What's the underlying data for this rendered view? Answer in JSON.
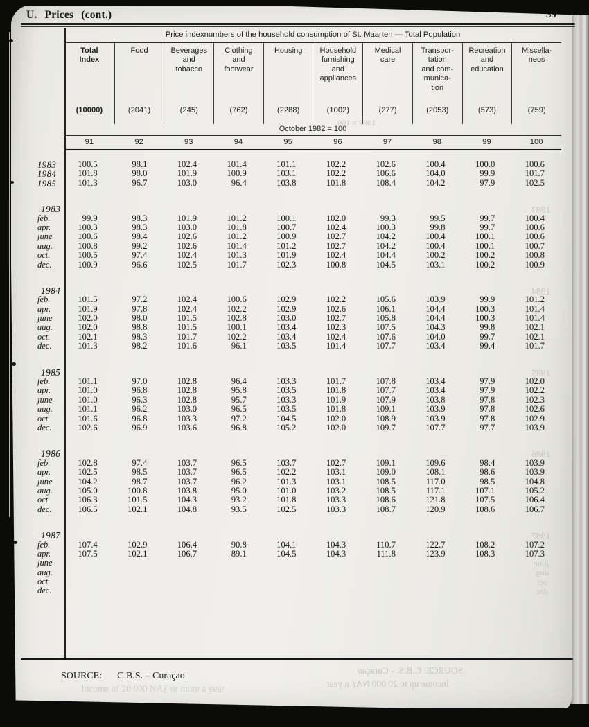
{
  "page": {
    "section_header": "U. Prices (cont.)",
    "page_number": "39"
  },
  "table": {
    "title": "Price indexnumbers of the household consumption of St. Maarten — Total Population",
    "base_period": "October 1982 = 100",
    "columns": [
      {
        "title": "Total\nIndex",
        "weight": "(10000)",
        "number": "91",
        "bold": true
      },
      {
        "title": "Food",
        "weight": "(2041)",
        "number": "92",
        "bold": false
      },
      {
        "title": "Beverages\nand\ntobacco",
        "weight": "(245)",
        "number": "93",
        "bold": false
      },
      {
        "title": "Clothing\nand\nfootwear",
        "weight": "(762)",
        "number": "94",
        "bold": false
      },
      {
        "title": "Housing",
        "weight": "(2288)",
        "number": "95",
        "bold": false
      },
      {
        "title": "Household\nfurnishing\nand\nappliances",
        "weight": "(1002)",
        "number": "96",
        "bold": false
      },
      {
        "title": "Medical\ncare",
        "weight": "(277)",
        "number": "97",
        "bold": false
      },
      {
        "title": "Transpor-\ntation\nand com-\nmunica-\ntion",
        "weight": "(2053)",
        "number": "98",
        "bold": false
      },
      {
        "title": "Recreation\nand\neducation",
        "weight": "(573)",
        "number": "99",
        "bold": false
      },
      {
        "title": "Miscella-\nneos",
        "weight": "(759)",
        "number": "100",
        "bold": false
      }
    ]
  },
  "sections": [
    {
      "heading": "",
      "rows": [
        {
          "label": "1983",
          "year_style": true,
          "values": [
            "100.5",
            "98.1",
            "102.4",
            "101.4",
            "101.1",
            "102.2",
            "102.6",
            "100.4",
            "100.0",
            "100.6"
          ]
        },
        {
          "label": "1984",
          "year_style": true,
          "values": [
            "101.8",
            "98.0",
            "101.9",
            "100.9",
            "103.1",
            "102.2",
            "106.6",
            "104.0",
            "99.9",
            "101.7"
          ]
        },
        {
          "label": "1985",
          "year_style": true,
          "values": [
            "101.3",
            "96.7",
            "103.0",
            "96.4",
            "103.8",
            "101.8",
            "108.4",
            "104.2",
            "97.9",
            "102.5"
          ]
        }
      ]
    },
    {
      "heading": "1983",
      "rows": [
        {
          "label": "feb.",
          "values": [
            "99.9",
            "98.3",
            "101.9",
            "101.2",
            "100.1",
            "102.0",
            "99.3",
            "99.5",
            "99.7",
            "100.4"
          ]
        },
        {
          "label": "apr.",
          "values": [
            "100.3",
            "98.3",
            "103.0",
            "101.8",
            "100.7",
            "102.4",
            "100.3",
            "99.8",
            "99.7",
            "100.6"
          ]
        },
        {
          "label": "june",
          "values": [
            "100.6",
            "98.4",
            "102.6",
            "101.2",
            "100.9",
            "102.7",
            "104.2",
            "100.4",
            "100.1",
            "100.6"
          ]
        },
        {
          "label": "aug.",
          "values": [
            "100.8",
            "99.2",
            "102.6",
            "101.4",
            "101.2",
            "102.7",
            "104.2",
            "100.4",
            "100.1",
            "100.7"
          ]
        },
        {
          "label": "oct.",
          "values": [
            "100.5",
            "97.4",
            "102.4",
            "101.3",
            "101.9",
            "102.4",
            "104.4",
            "100.2",
            "100.2",
            "100.8"
          ]
        },
        {
          "label": "dec.",
          "values": [
            "100.9",
            "96.6",
            "102.5",
            "101.7",
            "102.3",
            "100.8",
            "104.5",
            "103.1",
            "100.2",
            "100.9"
          ]
        }
      ]
    },
    {
      "heading": "1984",
      "rows": [
        {
          "label": "feb.",
          "values": [
            "101.5",
            "97.2",
            "102.4",
            "100.6",
            "102.9",
            "102.2",
            "105.6",
            "103.9",
            "99.9",
            "101.2"
          ]
        },
        {
          "label": "apr.",
          "values": [
            "101.9",
            "97.8",
            "102.4",
            "102.2",
            "102.9",
            "102.6",
            "106.1",
            "104.4",
            "100.3",
            "101.4"
          ]
        },
        {
          "label": "june",
          "values": [
            "102.0",
            "98.0",
            "101.5",
            "102.8",
            "103.0",
            "102.7",
            "105.8",
            "104.4",
            "100.3",
            "101.4"
          ]
        },
        {
          "label": "aug.",
          "values": [
            "102.0",
            "98.8",
            "101.5",
            "100.1",
            "103.4",
            "102.3",
            "107.5",
            "104.3",
            "99.8",
            "102.1"
          ]
        },
        {
          "label": "oct.",
          "values": [
            "102.1",
            "98.3",
            "101.7",
            "102.2",
            "103.4",
            "102.4",
            "107.6",
            "104.0",
            "99.7",
            "102.1"
          ]
        },
        {
          "label": "dec.",
          "values": [
            "101.3",
            "98.2",
            "101.6",
            "96.1",
            "103.5",
            "101.4",
            "107.7",
            "103.4",
            "99.4",
            "101.7"
          ]
        }
      ]
    },
    {
      "heading": "1985",
      "rows": [
        {
          "label": "feb.",
          "values": [
            "101.1",
            "97.0",
            "102.8",
            "96.4",
            "103.3",
            "101.7",
            "107.8",
            "103.4",
            "97.9",
            "102.0"
          ]
        },
        {
          "label": "apr.",
          "values": [
            "101.0",
            "96.8",
            "102.8",
            "95.8",
            "103.5",
            "101.8",
            "107.7",
            "103.4",
            "97.9",
            "102.2"
          ]
        },
        {
          "label": "june",
          "values": [
            "101.0",
            "96.3",
            "102.8",
            "95.7",
            "103.3",
            "101.9",
            "107.9",
            "103.8",
            "97.8",
            "102.3"
          ]
        },
        {
          "label": "aug.",
          "values": [
            "101.1",
            "96.2",
            "103.0",
            "96.5",
            "103.5",
            "101.8",
            "109.1",
            "103.9",
            "97.8",
            "102.6"
          ]
        },
        {
          "label": "oct.",
          "values": [
            "101.6",
            "96.8",
            "103.3",
            "97.2",
            "104.5",
            "102.0",
            "108.9",
            "103.9",
            "97.8",
            "102.9"
          ]
        },
        {
          "label": "dec.",
          "values": [
            "102.6",
            "96.9",
            "103.6",
            "96.8",
            "105.2",
            "102.0",
            "109.7",
            "107.7",
            "97.7",
            "103.9"
          ]
        }
      ]
    },
    {
      "heading": "1986",
      "rows": [
        {
          "label": "feb.",
          "values": [
            "102.8",
            "97.4",
            "103.7",
            "96.5",
            "103.7",
            "102.7",
            "109.1",
            "109.6",
            "98.4",
            "103.9"
          ]
        },
        {
          "label": "apr.",
          "values": [
            "102.5",
            "98.5",
            "103.7",
            "96.5",
            "102.2",
            "103.1",
            "109.0",
            "108.1",
            "98.6",
            "103.9"
          ]
        },
        {
          "label": "june",
          "values": [
            "104.2",
            "98.7",
            "103.7",
            "96.2",
            "101.3",
            "103.1",
            "108.5",
            "117.0",
            "98.5",
            "104.8"
          ]
        },
        {
          "label": "aug.",
          "values": [
            "105.0",
            "100.8",
            "103.8",
            "95.0",
            "101.0",
            "103.2",
            "108.5",
            "117.1",
            "107.1",
            "105.2"
          ]
        },
        {
          "label": "oct.",
          "values": [
            "106.3",
            "101.5",
            "104.3",
            "93.2",
            "101.8",
            "103.3",
            "108.6",
            "121.8",
            "107.5",
            "106.4"
          ]
        },
        {
          "label": "dec.",
          "values": [
            "106.5",
            "102.1",
            "104.8",
            "93.5",
            "102.5",
            "103.3",
            "108.7",
            "120.9",
            "108.6",
            "106.7"
          ]
        }
      ]
    },
    {
      "heading": "1987",
      "rows": [
        {
          "label": "feb.",
          "values": [
            "107.4",
            "102.9",
            "106.4",
            "90.8",
            "104.1",
            "104.3",
            "110.7",
            "122.7",
            "108.2",
            "107.2"
          ]
        },
        {
          "label": "apr.",
          "values": [
            "107.5",
            "102.1",
            "106.7",
            "89.1",
            "104.5",
            "104.3",
            "111.8",
            "123.9",
            "108.3",
            "107.3"
          ]
        },
        {
          "label": "june",
          "values": []
        },
        {
          "label": "aug.",
          "values": []
        },
        {
          "label": "oct.",
          "values": []
        },
        {
          "label": "dec.",
          "values": []
        }
      ]
    }
  ],
  "footer": {
    "source_label": "SOURCE:",
    "source_value": "C.B.S. – Curaçao"
  },
  "ghosts": {
    "years": [
      "1983",
      "1984",
      "1985",
      "1986",
      "1987"
    ],
    "months_1987": "june\naug.\noct.\ndec.",
    "october": "1982 = 100",
    "source": "SOURCE: C.B.S. - Curaçao",
    "income_right": "Income up to 20 000 NAƒ a year",
    "income_left": "Income of 20 000 NAƒ or more a year"
  }
}
